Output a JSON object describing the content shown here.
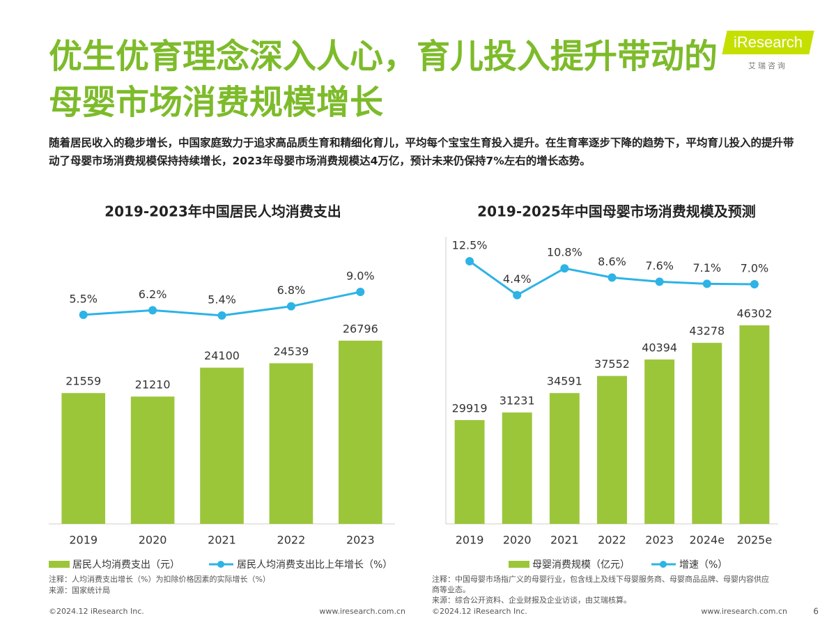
{
  "header": {
    "title": "优生优育理念深入人心，育儿投入提升带动的母婴市场消费规模增长",
    "logo": "iResearch",
    "logo_sub": "艾瑞咨询"
  },
  "description": "随着居民收入的稳步增长，中国家庭致力于追求高品质生育和精细化育儿，平均每个宝宝生育投入提升。在生育率逐步下降的趋势下，平均育儿投入的提升带动了母婴市场消费规模保持持续增长，2023年母婴市场消费规模达4万亿，预计未来仍保持7%左右的增长态势。",
  "page_number": "6",
  "chart_data": [
    {
      "type": "combo",
      "title": "2019-2023年中国居民人均消费支出",
      "categories": [
        "2019",
        "2020",
        "2021",
        "2022",
        "2023"
      ],
      "series": [
        {
          "name": "居民人均消费支出（元）",
          "kind": "bar",
          "color": "#9cc63a",
          "values": [
            21559,
            21210,
            24100,
            24539,
            26796
          ]
        },
        {
          "name": "居民人均消费支出比上年增长（%）",
          "kind": "line",
          "color": "#2db3e6",
          "values": [
            5.5,
            6.2,
            5.4,
            6.8,
            9.0
          ],
          "value_labels": [
            "5.5%",
            "6.2%",
            "5.4%",
            "6.8%",
            "9.0%"
          ]
        }
      ],
      "note": "注释：人均消费支出增长（%）为扣除价格因素的实际增长（%）",
      "source": "来源：国家统计局",
      "copyright": "©2024.12 iResearch Inc.",
      "url": "www.iresearch.com.cn"
    },
    {
      "type": "combo",
      "title": "2019-2025年中国母婴市场消费规模及预测",
      "categories": [
        "2019",
        "2020",
        "2021",
        "2022",
        "2023",
        "2024e",
        "2025e"
      ],
      "series": [
        {
          "name": "母婴消费规模（亿元）",
          "kind": "bar",
          "color": "#9cc63a",
          "values": [
            29919,
            31231,
            34591,
            37552,
            40394,
            43278,
            46302
          ]
        },
        {
          "name": "增速（%）",
          "kind": "line",
          "color": "#2db3e6",
          "values": [
            12.5,
            4.4,
            10.8,
            8.6,
            7.6,
            7.1,
            7.0
          ],
          "value_labels": [
            "12.5%",
            "4.4%",
            "10.8%",
            "8.6%",
            "7.6%",
            "7.1%",
            "7.0%"
          ]
        }
      ],
      "note": "注释：中国母婴市场指广义的母婴行业，包含线上及线下母婴服务商、母婴商品品牌、母婴内容供应商等业态。",
      "source": "来源：综合公开资料、企业财报及企业访谈，由艾瑞核算。",
      "copyright": "©2024.12 iResearch Inc.",
      "url": "www.iresearch.com.cn"
    }
  ]
}
